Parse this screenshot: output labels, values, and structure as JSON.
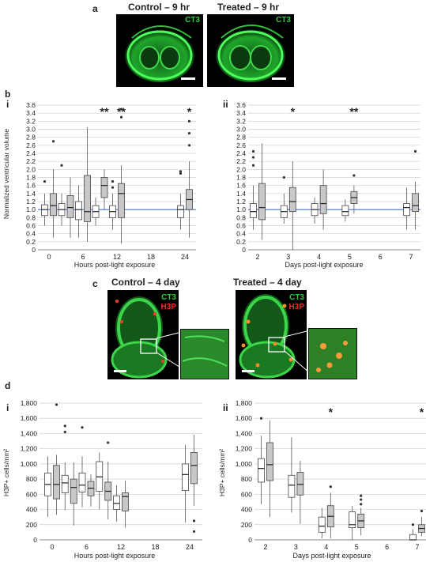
{
  "panel_a": {
    "label": "a",
    "left_title": "Control – 9 hr",
    "right_title": "Treated – 9 hr",
    "stain": "CT3"
  },
  "panel_b": {
    "label": "b",
    "sub_i": "i",
    "sub_ii": "ii",
    "ylabel": "Normalized ventricular volume",
    "xlabel_i": "Hours post-light exposure",
    "xlabel_ii": "Days post-light exposure",
    "y_ticks": [
      "0",
      "0.2",
      "0.4",
      "0.6",
      "0.8",
      "1.0",
      "1.2",
      "1.4",
      "1.6",
      "1.8",
      "2.0",
      "2.2",
      "2.4",
      "2.6",
      "2.8",
      "3.0",
      "3.2",
      "3.4",
      "3.6"
    ],
    "x_ticks_i": [
      "0",
      "6",
      "12",
      "18",
      "24"
    ],
    "x_ticks_ii": [
      "2",
      "3",
      "4",
      "5",
      "6",
      "7"
    ],
    "sig_i": [
      "**",
      "**",
      "*"
    ],
    "sig_ii": [
      "*",
      "**"
    ]
  },
  "panel_c": {
    "label": "c",
    "left_title": "Control – 4 day",
    "right_title": "Treated – 4 day",
    "stain1": "CT3",
    "stain2": "H3P"
  },
  "panel_d": {
    "label": "d",
    "sub_i": "i",
    "sub_ii": "ii",
    "ylabel": "H3P+ cells/mm²",
    "xlabel_i": "Hours post-light exposure",
    "xlabel_ii": "Days post-light exposure",
    "y_ticks": [
      "0",
      "200",
      "400",
      "600",
      "800",
      "1,000",
      "1,200",
      "1,400",
      "1,600",
      "1,800"
    ],
    "x_ticks_i": [
      "0",
      "6",
      "12",
      "18",
      "24"
    ],
    "x_ticks_ii": [
      "2",
      "3",
      "4",
      "5",
      "6",
      "7"
    ],
    "sig_ii": [
      "*",
      "*"
    ]
  },
  "chart_data": [
    {
      "type": "box",
      "panel": "b-i",
      "ylim": [
        0,
        3.6
      ],
      "reference_line": 1.0,
      "xlabel": "Hours post-light exposure",
      "ylabel": "Normalized ventricular volume",
      "boxes": [
        {
          "x": 0,
          "group": "control",
          "min": 0.6,
          "q1": 0.85,
          "median": 1.0,
          "q3": 1.12,
          "max": 1.4,
          "outliers": [
            1.7
          ]
        },
        {
          "x": 0,
          "group": "treated",
          "min": 0.3,
          "q1": 0.85,
          "median": 1.1,
          "q3": 1.4,
          "max": 2.0,
          "outliers": [
            2.7
          ]
        },
        {
          "x": 3,
          "group": "control",
          "min": 0.6,
          "q1": 0.85,
          "median": 1.0,
          "q3": 1.15,
          "max": 1.4,
          "outliers": [
            2.1
          ]
        },
        {
          "x": 3,
          "group": "treated",
          "min": 0.3,
          "q1": 0.8,
          "median": 1.05,
          "q3": 1.35,
          "max": 1.8,
          "outliers": []
        },
        {
          "x": 6,
          "group": "control",
          "min": 0.3,
          "q1": 0.75,
          "median": 1.0,
          "q3": 1.2,
          "max": 1.6,
          "outliers": []
        },
        {
          "x": 6,
          "group": "treated",
          "min": 0.2,
          "q1": 0.7,
          "median": 0.95,
          "q3": 1.85,
          "max": 3.05,
          "outliers": []
        },
        {
          "x": 9,
          "group": "control",
          "min": 0.6,
          "q1": 0.8,
          "median": 0.95,
          "q3": 1.1,
          "max": 1.3,
          "outliers": []
        },
        {
          "x": 9,
          "group": "treated",
          "min": 1.0,
          "q1": 1.3,
          "median": 1.6,
          "q3": 1.8,
          "max": 2.0,
          "outliers": []
        },
        {
          "x": 12,
          "group": "control",
          "min": 0.5,
          "q1": 0.8,
          "median": 0.95,
          "q3": 1.1,
          "max": 1.4,
          "outliers": [
            1.7,
            1.55
          ]
        },
        {
          "x": 12,
          "group": "treated",
          "min": 0.15,
          "q1": 0.8,
          "median": 1.4,
          "q3": 1.65,
          "max": 2.1,
          "outliers": [
            3.3,
            3.5
          ]
        },
        {
          "x": 24,
          "group": "control",
          "min": 0.5,
          "q1": 0.8,
          "median": 1.0,
          "q3": 1.1,
          "max": 1.4,
          "outliers": [
            1.9,
            1.95
          ]
        },
        {
          "x": 24,
          "group": "treated",
          "min": 0.3,
          "q1": 1.0,
          "median": 1.25,
          "q3": 1.5,
          "max": 2.2,
          "outliers": [
            2.6,
            2.9,
            3.2
          ]
        }
      ]
    },
    {
      "type": "box",
      "panel": "b-ii",
      "ylim": [
        0,
        3.6
      ],
      "reference_line": 1.0,
      "xlabel": "Days post-light exposure",
      "ylabel": "Normalized ventricular volume",
      "boxes": [
        {
          "x": 2,
          "group": "control",
          "min": 0.5,
          "q1": 0.8,
          "median": 0.95,
          "q3": 1.15,
          "max": 1.6,
          "outliers": [
            2.1,
            2.3,
            2.45
          ]
        },
        {
          "x": 2,
          "group": "treated",
          "min": 0.25,
          "q1": 0.75,
          "median": 1.05,
          "q3": 1.65,
          "max": 2.65,
          "outliers": []
        },
        {
          "x": 3,
          "group": "control",
          "min": 0.65,
          "q1": 0.8,
          "median": 0.95,
          "q3": 1.1,
          "max": 1.4,
          "outliers": [
            1.8
          ]
        },
        {
          "x": 3,
          "group": "treated",
          "min": 0.0,
          "q1": 0.95,
          "median": 1.2,
          "q3": 1.55,
          "max": 2.2,
          "outliers": []
        },
        {
          "x": 4,
          "group": "control",
          "min": 0.65,
          "q1": 0.85,
          "median": 1.0,
          "q3": 1.15,
          "max": 1.3,
          "outliers": []
        },
        {
          "x": 4,
          "group": "treated",
          "min": 0.5,
          "q1": 0.9,
          "median": 1.15,
          "q3": 1.6,
          "max": 2.0,
          "outliers": []
        },
        {
          "x": 5,
          "group": "control",
          "min": 0.7,
          "q1": 0.85,
          "median": 0.95,
          "q3": 1.1,
          "max": 1.25,
          "outliers": []
        },
        {
          "x": 5,
          "group": "treated",
          "min": 0.9,
          "q1": 1.15,
          "median": 1.3,
          "q3": 1.45,
          "max": 1.6,
          "outliers": [
            1.85
          ]
        },
        {
          "x": 7,
          "group": "control",
          "min": 0.5,
          "q1": 0.85,
          "median": 1.05,
          "q3": 1.15,
          "max": 1.55,
          "outliers": []
        },
        {
          "x": 7,
          "group": "treated",
          "min": 0.5,
          "q1": 0.95,
          "median": 1.1,
          "q3": 1.4,
          "max": 1.7,
          "outliers": [
            2.45
          ]
        }
      ]
    },
    {
      "type": "box",
      "panel": "d-i",
      "ylim": [
        0,
        1800
      ],
      "xlabel": "Hours post-light exposure",
      "ylabel": "H3P+ cells/mm²",
      "boxes": [
        {
          "x": 0,
          "group": "control",
          "min": 300,
          "q1": 580,
          "median": 730,
          "q3": 880,
          "max": 1100,
          "outliers": []
        },
        {
          "x": 0,
          "group": "treated",
          "min": 330,
          "q1": 540,
          "median": 730,
          "q3": 980,
          "max": 1120,
          "outliers": [
            1780
          ]
        },
        {
          "x": 3,
          "group": "control",
          "min": 390,
          "q1": 620,
          "median": 750,
          "q3": 850,
          "max": 1020,
          "outliers": [
            1500,
            1420
          ]
        },
        {
          "x": 3,
          "group": "treated",
          "min": 190,
          "q1": 480,
          "median": 690,
          "q3": 800,
          "max": 1020,
          "outliers": []
        },
        {
          "x": 6,
          "group": "control",
          "min": 430,
          "q1": 630,
          "median": 720,
          "q3": 880,
          "max": 1100,
          "outliers": [
            1480
          ]
        },
        {
          "x": 6,
          "group": "treated",
          "min": 440,
          "q1": 580,
          "median": 680,
          "q3": 770,
          "max": 860,
          "outliers": []
        },
        {
          "x": 9,
          "group": "control",
          "min": 400,
          "q1": 640,
          "median": 830,
          "q3": 1030,
          "max": 1150,
          "outliers": []
        },
        {
          "x": 9,
          "group": "treated",
          "min": 270,
          "q1": 520,
          "median": 640,
          "q3": 760,
          "max": 1030,
          "outliers": [
            1280
          ]
        },
        {
          "x": 12,
          "group": "control",
          "min": 240,
          "q1": 400,
          "median": 480,
          "q3": 580,
          "max": 720,
          "outliers": []
        },
        {
          "x": 12,
          "group": "treated",
          "min": 160,
          "q1": 380,
          "median": 570,
          "q3": 620,
          "max": 780,
          "outliers": []
        },
        {
          "x": 24,
          "group": "control",
          "min": 230,
          "q1": 650,
          "median": 860,
          "q3": 1000,
          "max": 1250,
          "outliers": []
        },
        {
          "x": 24,
          "group": "treated",
          "min": 450,
          "q1": 740,
          "median": 980,
          "q3": 1150,
          "max": 1380,
          "outliers": [
            250,
            110
          ]
        }
      ]
    },
    {
      "type": "box",
      "panel": "d-ii",
      "ylim": [
        0,
        1800
      ],
      "xlabel": "Days post-light exposure",
      "ylabel": "H3P+ cells/mm²",
      "boxes": [
        {
          "x": 2,
          "group": "control",
          "min": 470,
          "q1": 760,
          "median": 940,
          "q3": 1070,
          "max": 1370,
          "outliers": [
            1600
          ]
        },
        {
          "x": 2,
          "group": "treated",
          "min": 300,
          "q1": 780,
          "median": 990,
          "q3": 1280,
          "max": 1570,
          "outliers": []
        },
        {
          "x": 3,
          "group": "control",
          "min": 360,
          "q1": 560,
          "median": 720,
          "q3": 850,
          "max": 1350,
          "outliers": []
        },
        {
          "x": 3,
          "group": "treated",
          "min": 210,
          "q1": 590,
          "median": 730,
          "q3": 890,
          "max": 1040,
          "outliers": []
        },
        {
          "x": 4,
          "group": "control",
          "min": 20,
          "q1": 100,
          "median": 180,
          "q3": 300,
          "max": 420,
          "outliers": []
        },
        {
          "x": 4,
          "group": "treated",
          "min": 20,
          "q1": 170,
          "median": 310,
          "q3": 450,
          "max": 620,
          "outliers": [
            700
          ]
        },
        {
          "x": 5,
          "group": "control",
          "min": 0,
          "q1": 160,
          "median": 200,
          "q3": 370,
          "max": 450,
          "outliers": []
        },
        {
          "x": 5,
          "group": "treated",
          "min": 60,
          "q1": 160,
          "median": 250,
          "q3": 340,
          "max": 420,
          "outliers": [
            470,
            530,
            580
          ]
        },
        {
          "x": 7,
          "group": "control",
          "min": 0,
          "q1": 0,
          "median": 0,
          "q3": 70,
          "max": 140,
          "outliers": [
            200
          ]
        },
        {
          "x": 7,
          "group": "treated",
          "min": 50,
          "q1": 100,
          "median": 150,
          "q3": 200,
          "max": 300,
          "outliers": [
            380
          ]
        }
      ]
    }
  ]
}
